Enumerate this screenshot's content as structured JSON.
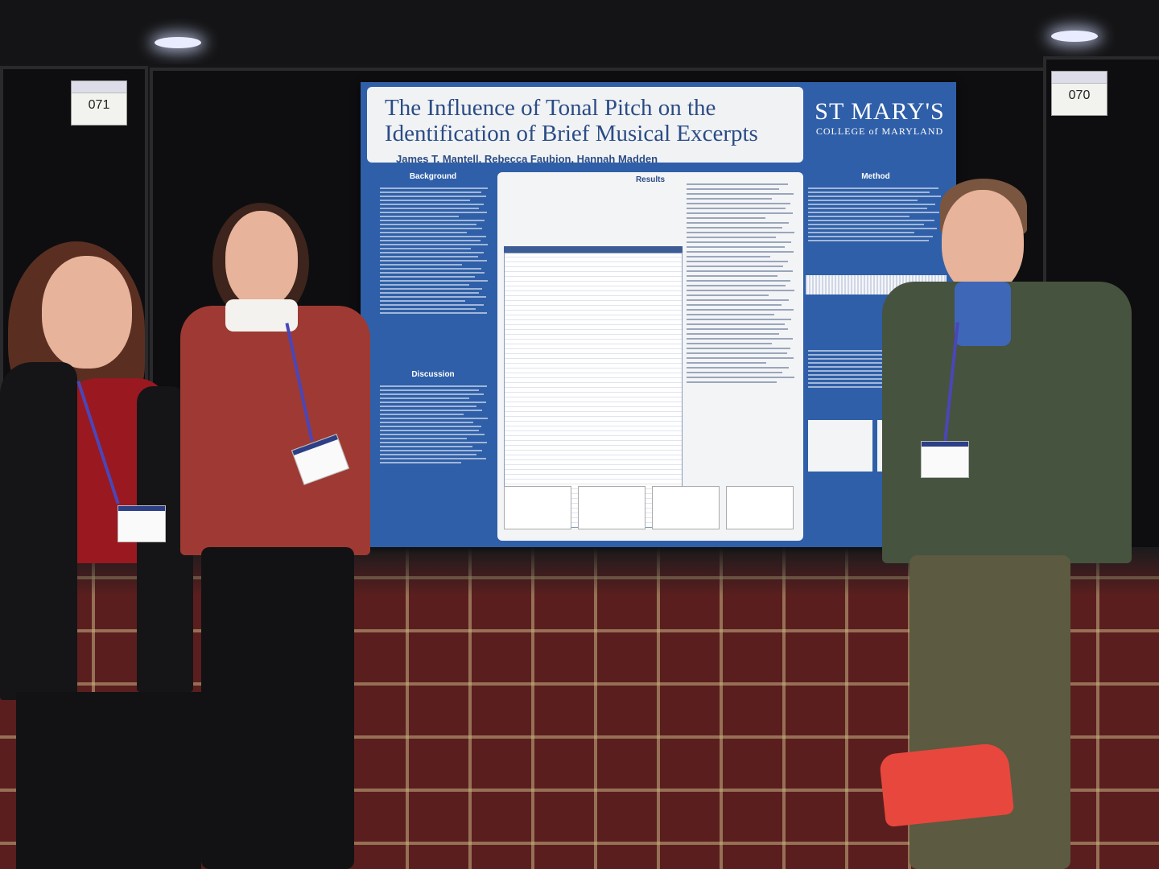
{
  "booths": {
    "left_number": "071",
    "right_number": "070"
  },
  "poster": {
    "title_line1": "The Influence of Tonal Pitch on the",
    "title_line2": "Identification of Brief Musical Excerpts",
    "authors": "James T. Mantell, Rebecca Faubion, Hannah Madden",
    "logo_main": "ST MARY'S",
    "logo_sub": "COLLEGE of MARYLAND",
    "sections": {
      "background": "Background",
      "discussion": "Discussion",
      "results": "Results",
      "method": "Method"
    },
    "colors": {
      "primary": "#2f5fa8",
      "panel": "#f1f2f4",
      "title": "#2a4c86"
    }
  }
}
